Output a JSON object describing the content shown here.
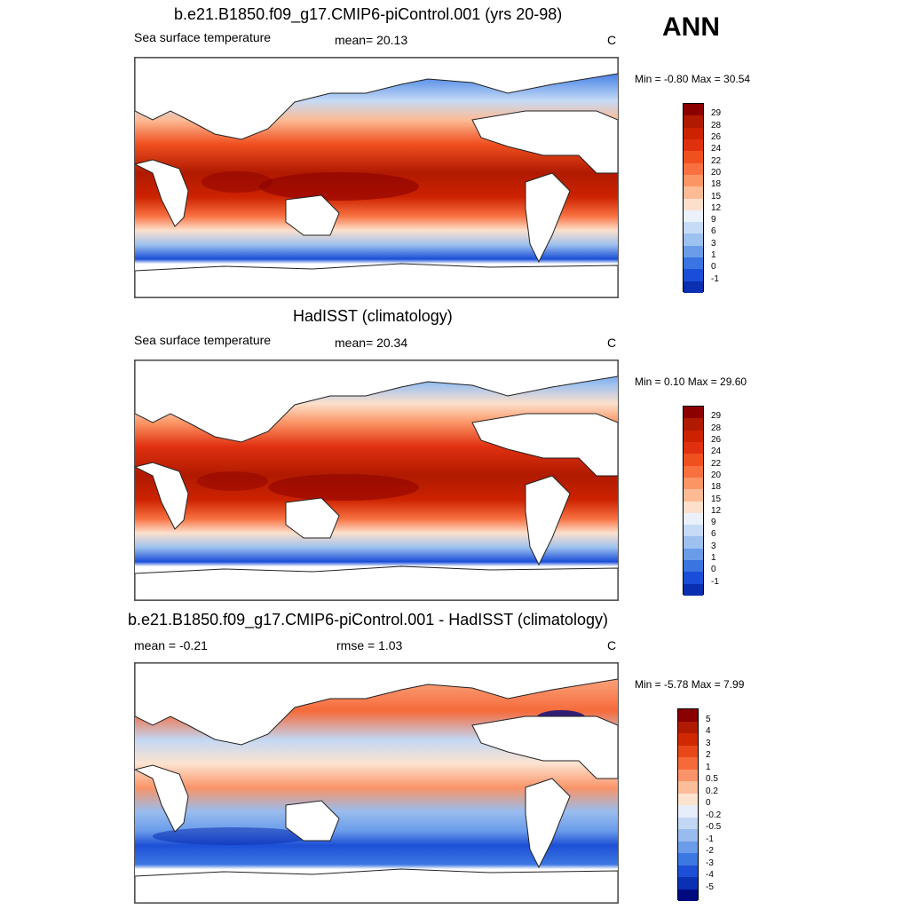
{
  "season": "ANN",
  "panels": [
    {
      "title": "b.e21.B1850.f09_g17.CMIP6-piControl.001 (yrs 20-98)",
      "left_label": "Sea surface temperature",
      "center_label": "mean=  20.13",
      "units": "C",
      "minmax": "Min =  -0.80 Max =  30.54",
      "colorbar_labels": [
        "29",
        "28",
        "26",
        "24",
        "22",
        "20",
        "18",
        "15",
        "12",
        "9",
        "6",
        "3",
        "1",
        "0",
        "-1"
      ],
      "colorbar_colors": [
        "#8b0000",
        "#b01a00",
        "#cc2200",
        "#e03010",
        "#f05020",
        "#f87040",
        "#fb9565",
        "#fdbb95",
        "#fde0cc",
        "#eaf1fb",
        "#c6dbf5",
        "#9ec2ef",
        "#6a9cea",
        "#3a74e0",
        "#1a4ed8",
        "#0a2fb0"
      ]
    },
    {
      "title": "HadISST (climatology)",
      "left_label": "Sea surface temperature",
      "center_label": "mean=  20.34",
      "units": "C",
      "minmax": "Min =   0.10 Max =  29.60",
      "colorbar_labels": [
        "29",
        "28",
        "26",
        "24",
        "22",
        "20",
        "18",
        "15",
        "12",
        "9",
        "6",
        "3",
        "1",
        "0",
        "-1"
      ],
      "colorbar_colors": [
        "#8b0000",
        "#b01a00",
        "#cc2200",
        "#e03010",
        "#f05020",
        "#f87040",
        "#fb9565",
        "#fdbb95",
        "#fde0cc",
        "#eaf1fb",
        "#c6dbf5",
        "#9ec2ef",
        "#6a9cea",
        "#3a74e0",
        "#1a4ed8",
        "#0a2fb0"
      ]
    },
    {
      "title": "b.e21.B1850.f09_g17.CMIP6-piControl.001 - HadISST (climatology)",
      "left_label": "mean =  -0.21",
      "center_label": "rmse =   1.03",
      "units": "C",
      "minmax": "Min =  -5.78 Max =   7.99",
      "colorbar_labels": [
        "5",
        "4",
        "3",
        "2",
        "1",
        "0.5",
        "0.2",
        "0",
        "-0.2",
        "-0.5",
        "-1",
        "-2",
        "-3",
        "-4",
        "-5"
      ],
      "colorbar_colors": [
        "#8b0000",
        "#b01a00",
        "#d02800",
        "#e84818",
        "#f66a3a",
        "#fa9468",
        "#fcbd9a",
        "#fde3cf",
        "#e7eefa",
        "#c3d7f4",
        "#98bcee",
        "#6a9cea",
        "#3c78e2",
        "#1d4fd6",
        "#0a30b4",
        "#000a80"
      ]
    }
  ]
}
